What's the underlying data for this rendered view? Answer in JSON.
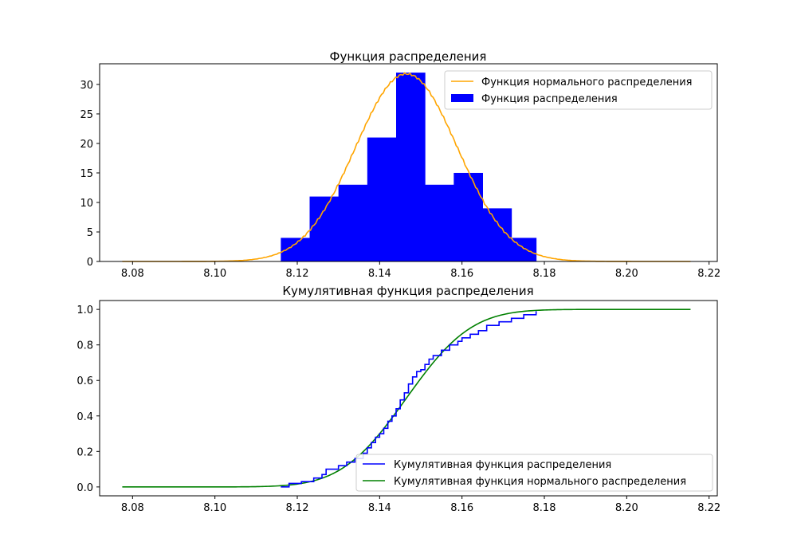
{
  "chart_data": [
    {
      "type": "bar",
      "title": "Функция распределения",
      "xlim": [
        8.072,
        8.222
      ],
      "ylim": [
        0,
        33.5
      ],
      "x_ticks": [
        "8.08",
        "8.10",
        "8.12",
        "8.14",
        "8.16",
        "8.18",
        "8.20",
        "8.22"
      ],
      "y_ticks": [
        "0",
        "5",
        "10",
        "15",
        "20",
        "25",
        "30"
      ],
      "grid": false,
      "legend_position": "top-right",
      "histogram": {
        "name": "Функция распределения",
        "color": "#0000ff",
        "bin_edges": [
          8.116,
          8.123,
          8.13,
          8.137,
          8.144,
          8.151,
          8.158,
          8.165,
          8.172,
          8.178
        ],
        "values": [
          4,
          11,
          13,
          21,
          32,
          13,
          15,
          9,
          4
        ]
      },
      "curve": {
        "name": "Функция нормального распределения",
        "color": "#ffa500",
        "mean": 8.1465,
        "peak": 31.8,
        "sd": 0.0124,
        "x_range": [
          8.0775,
          8.2155
        ]
      }
    },
    {
      "type": "line",
      "title": "Кумулятивная функция распределения",
      "xlim": [
        8.072,
        8.222
      ],
      "ylim": [
        -0.05,
        1.05
      ],
      "x_ticks": [
        "8.08",
        "8.10",
        "8.12",
        "8.14",
        "8.16",
        "8.18",
        "8.20",
        "8.22"
      ],
      "y_ticks": [
        "0.0",
        "0.2",
        "0.4",
        "0.6",
        "0.8",
        "1.0"
      ],
      "grid": false,
      "legend_position": "bottom-right",
      "series": [
        {
          "name": "Кумулятивная функция распределения",
          "color": "#0000ff",
          "x": [
            8.116,
            8.118,
            8.121,
            8.124,
            8.126,
            8.127,
            8.13,
            8.132,
            8.134,
            8.136,
            8.137,
            8.138,
            8.139,
            8.14,
            8.141,
            8.142,
            8.143,
            8.144,
            8.145,
            8.146,
            8.147,
            8.148,
            8.149,
            8.15,
            8.151,
            8.152,
            8.153,
            8.155,
            8.157,
            8.159,
            8.16,
            8.162,
            8.164,
            8.166,
            8.169,
            8.172,
            8.175,
            8.178
          ],
          "y": [
            0.0,
            0.02,
            0.03,
            0.05,
            0.07,
            0.1,
            0.12,
            0.14,
            0.16,
            0.19,
            0.22,
            0.25,
            0.28,
            0.3,
            0.33,
            0.37,
            0.4,
            0.44,
            0.49,
            0.53,
            0.58,
            0.62,
            0.65,
            0.66,
            0.69,
            0.72,
            0.74,
            0.77,
            0.8,
            0.82,
            0.84,
            0.86,
            0.88,
            0.91,
            0.93,
            0.95,
            0.97,
            0.99
          ]
        },
        {
          "name": "Кумулятивная функция нормального распределения",
          "color": "#008000",
          "mean": 8.1465,
          "sd": 0.0124,
          "x_range": [
            8.0775,
            8.2155
          ]
        }
      ]
    }
  ]
}
